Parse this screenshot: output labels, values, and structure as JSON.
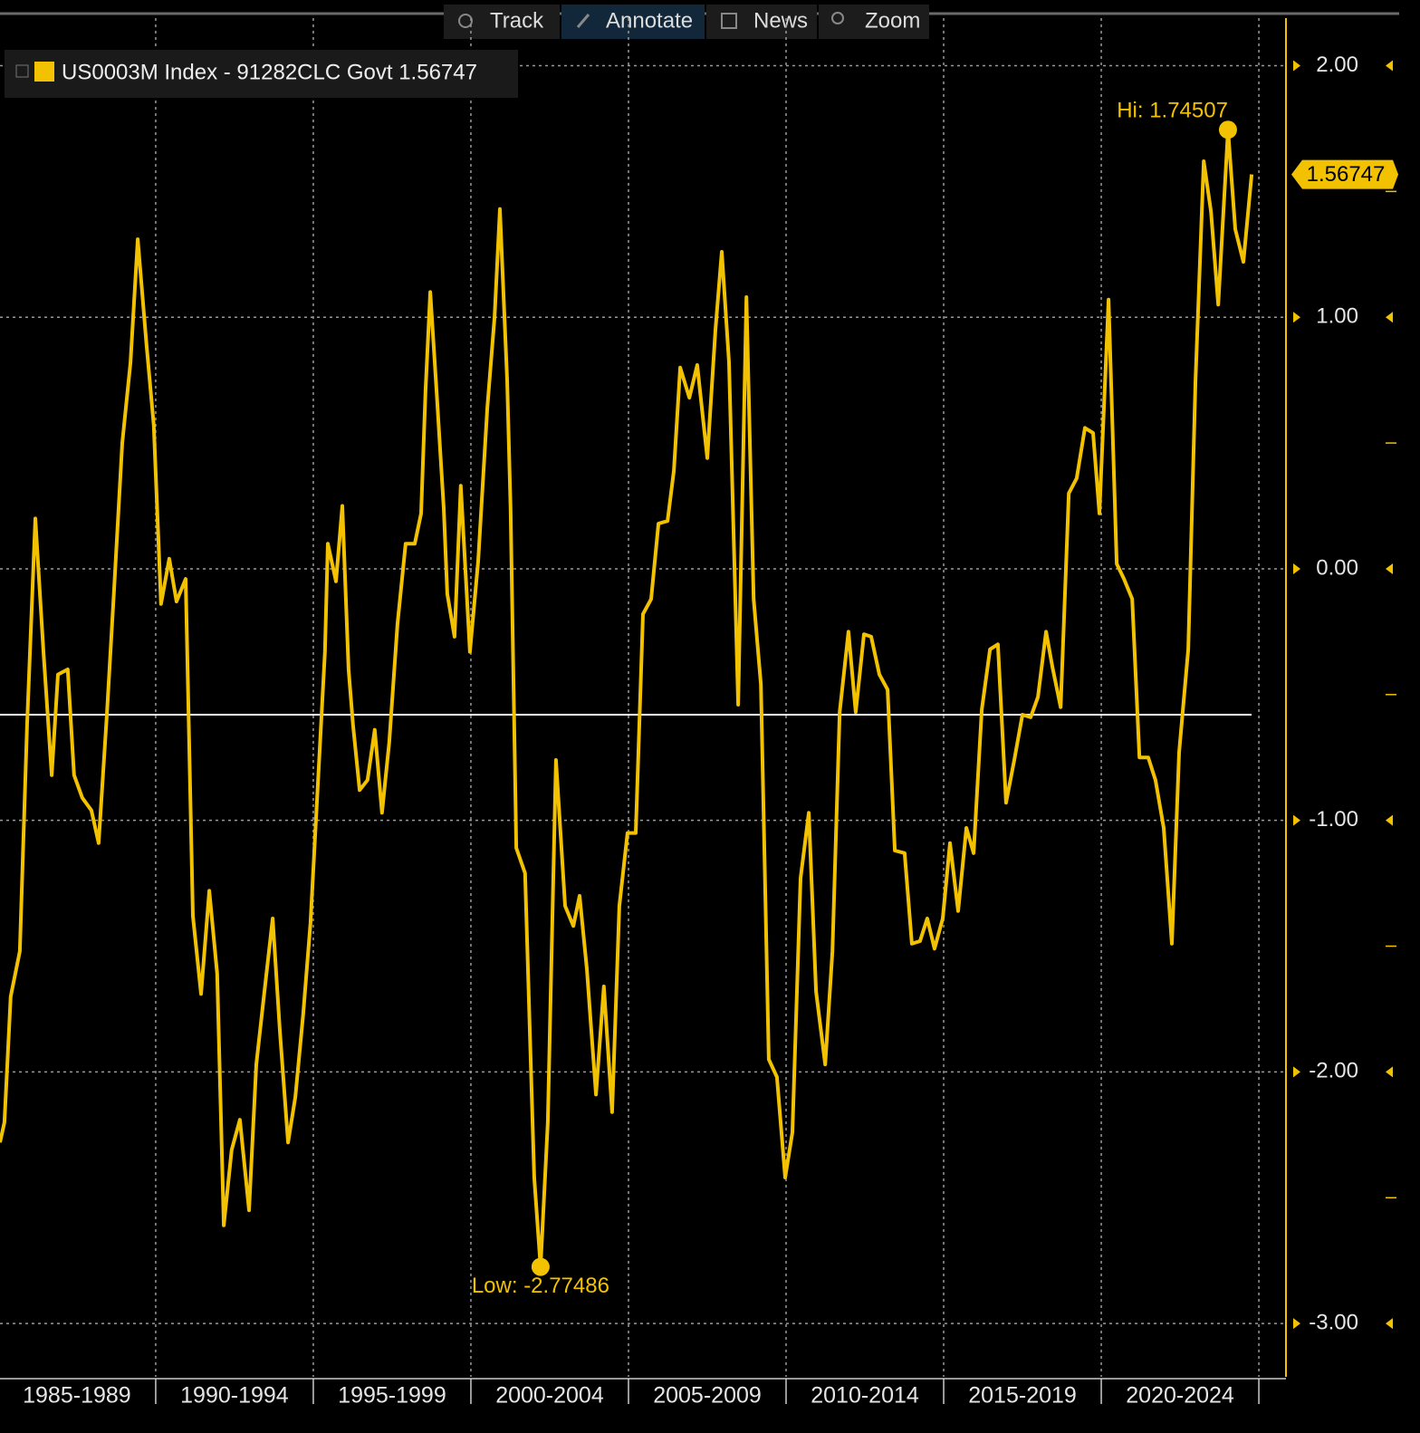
{
  "toolbar": [
    "Track",
    "Annotate",
    "News",
    "Zoom"
  ],
  "chart_data": {
    "type": "line",
    "series": [
      {
        "name": "US0003M Index - 91282CLC Govt 1.56747",
        "color": "#f2c200",
        "values": [
          -2.28,
          -2.2,
          -1.7,
          -1.52,
          -0.62,
          0.2,
          -0.33,
          -0.82,
          -0.42,
          -0.4,
          -0.82,
          -0.91,
          -0.96,
          -1.09,
          -0.58,
          -0.08,
          0.5,
          0.82,
          1.31,
          0.89,
          0.57,
          -0.14,
          0.04,
          -0.13,
          -0.04,
          -1.38,
          -1.69,
          -1.28,
          -1.61,
          -2.61,
          -2.31,
          -2.19,
          -2.55,
          -1.97,
          -1.68,
          -1.39,
          -1.84,
          -2.28,
          -2.1,
          -1.77,
          -1.41,
          -0.87,
          -0.33,
          0.1,
          -0.05,
          0.25,
          -0.4,
          -0.62,
          -0.88,
          -0.84,
          -0.64,
          -0.97,
          -0.69,
          -0.22,
          0.1,
          0.1,
          0.22,
          0.71,
          1.1,
          0.71,
          0.24,
          -0.1,
          -0.27,
          0.33,
          -0.33,
          0.03,
          0.64,
          1.0,
          1.43,
          0.75,
          0.24,
          -1.11,
          -1.21,
          -2.42,
          -2.77486,
          -2.2,
          -0.76,
          -1.34,
          -1.42,
          -1.3,
          -1.59,
          -2.09,
          -1.66,
          -2.16,
          -1.34,
          -1.05,
          -1.05,
          -0.18,
          -0.12,
          0.18,
          0.19,
          0.39,
          0.8,
          0.68,
          0.81,
          0.44,
          0.95,
          1.26,
          0.82,
          -0.54,
          1.08,
          -0.12,
          -0.46,
          -1.95,
          -2.02,
          -2.42,
          -2.24,
          -1.23,
          -0.97,
          -1.68,
          -1.97,
          -1.52,
          -0.57,
          -0.25,
          -0.57,
          -0.26,
          -0.27,
          -0.42,
          -0.48,
          -1.12,
          -1.13,
          -1.49,
          -1.48,
          -1.39,
          -1.51,
          -1.39,
          -1.09,
          -1.36,
          -1.03,
          -1.13,
          -0.56,
          -0.32,
          -0.3,
          -0.93,
          -0.76,
          -0.58,
          -0.59,
          -0.51,
          -0.25,
          -0.39,
          -0.55,
          0.3,
          0.36,
          0.56,
          0.54,
          0.22,
          1.07,
          0.02,
          -0.04,
          -0.12,
          -0.75,
          -0.75,
          -0.84,
          -1.03,
          -1.49,
          -0.73,
          -0.32,
          0.75,
          1.62,
          1.42,
          1.05,
          1.74507,
          1.35,
          1.22,
          1.56747
        ]
      }
    ],
    "x": [
      1985.06,
      1985.2,
      1985.4,
      1985.69,
      1985.92,
      1986.18,
      1986.44,
      1986.7,
      1986.9,
      1987.21,
      1987.41,
      1987.67,
      1987.96,
      1988.19,
      1988.45,
      1988.68,
      1988.94,
      1989.2,
      1989.43,
      1989.71,
      1989.94,
      1990.17,
      1990.43,
      1990.66,
      1990.95,
      1991.18,
      1991.44,
      1991.7,
      1991.95,
      1992.16,
      1992.41,
      1992.67,
      1992.96,
      1993.19,
      1993.45,
      1993.71,
      1993.94,
      1994.2,
      1994.43,
      1994.68,
      1994.91,
      1995.14,
      1995.37,
      1995.46,
      1995.72,
      1995.92,
      1996.12,
      1996.26,
      1996.47,
      1996.72,
      1996.95,
      1997.18,
      1997.41,
      1997.67,
      1997.93,
      1998.22,
      1998.42,
      1998.56,
      1998.71,
      1998.91,
      1999.14,
      1999.25,
      1999.48,
      1999.68,
      1999.97,
      2000.23,
      2000.52,
      2000.75,
      2000.92,
      2001.15,
      2001.26,
      2001.44,
      2001.72,
      2002.01,
      2002.21,
      2002.44,
      2002.7,
      2002.99,
      2003.25,
      2003.45,
      2003.68,
      2003.97,
      2004.22,
      2004.48,
      2004.71,
      2004.97,
      2005.23,
      2005.46,
      2005.72,
      2005.95,
      2006.24,
      2006.44,
      2006.64,
      2006.93,
      2007.18,
      2007.5,
      2007.76,
      2007.96,
      2008.19,
      2008.48,
      2008.74,
      2008.97,
      2009.2,
      2009.45,
      2009.71,
      2009.97,
      2010.2,
      2010.46,
      2010.72,
      2010.95,
      2011.24,
      2011.47,
      2011.7,
      2011.98,
      2012.21,
      2012.47,
      2012.7,
      2012.96,
      2013.22,
      2013.45,
      2013.76,
      2013.99,
      2014.25,
      2014.48,
      2014.71,
      2014.97,
      2015.2,
      2015.46,
      2015.72,
      2015.95,
      2016.21,
      2016.47,
      2016.72,
      2016.98,
      2017.24,
      2017.5,
      2017.76,
      2017.99,
      2018.25,
      2018.45,
      2018.71,
      2018.97,
      2019.22,
      2019.48,
      2019.74,
      2019.94,
      2020.23,
      2020.49,
      2020.72,
      2020.98,
      2021.21,
      2021.49,
      2021.72,
      2021.98,
      2022.24,
      2022.47,
      2022.76,
      2022.99,
      2023.25,
      2023.48,
      2023.71,
      2024.02,
      2024.25,
      2024.51,
      2024.77
    ],
    "xlim": [
      1985.06,
      2025.86
    ],
    "x_periods": [
      "1985-1989",
      "1990-1994",
      "1995-1999",
      "2000-2004",
      "2005-2009",
      "2010-2014",
      "2015-2019",
      "2020-2024"
    ],
    "xgrid": [
      1990,
      1995,
      2000,
      2005,
      2010,
      2015,
      2020,
      2025
    ],
    "ylim": [
      -3.212,
      2.117
    ],
    "yticks": [
      {
        "value": 2,
        "label": "2.00"
      },
      {
        "value": 1,
        "label": "1.00"
      },
      {
        "value": 0,
        "label": "0.00"
      },
      {
        "value": -1,
        "label": "-1.00"
      },
      {
        "value": -2,
        "label": "-2.00"
      },
      {
        "value": -3,
        "label": "-3.00"
      }
    ],
    "yminor": [
      1.5,
      0.5,
      -0.5,
      -1.5,
      -2.5
    ],
    "hline": -0.58,
    "hi_label": "Hi: 1.74507",
    "low_label": "Low: -2.77486",
    "grid": true
  }
}
